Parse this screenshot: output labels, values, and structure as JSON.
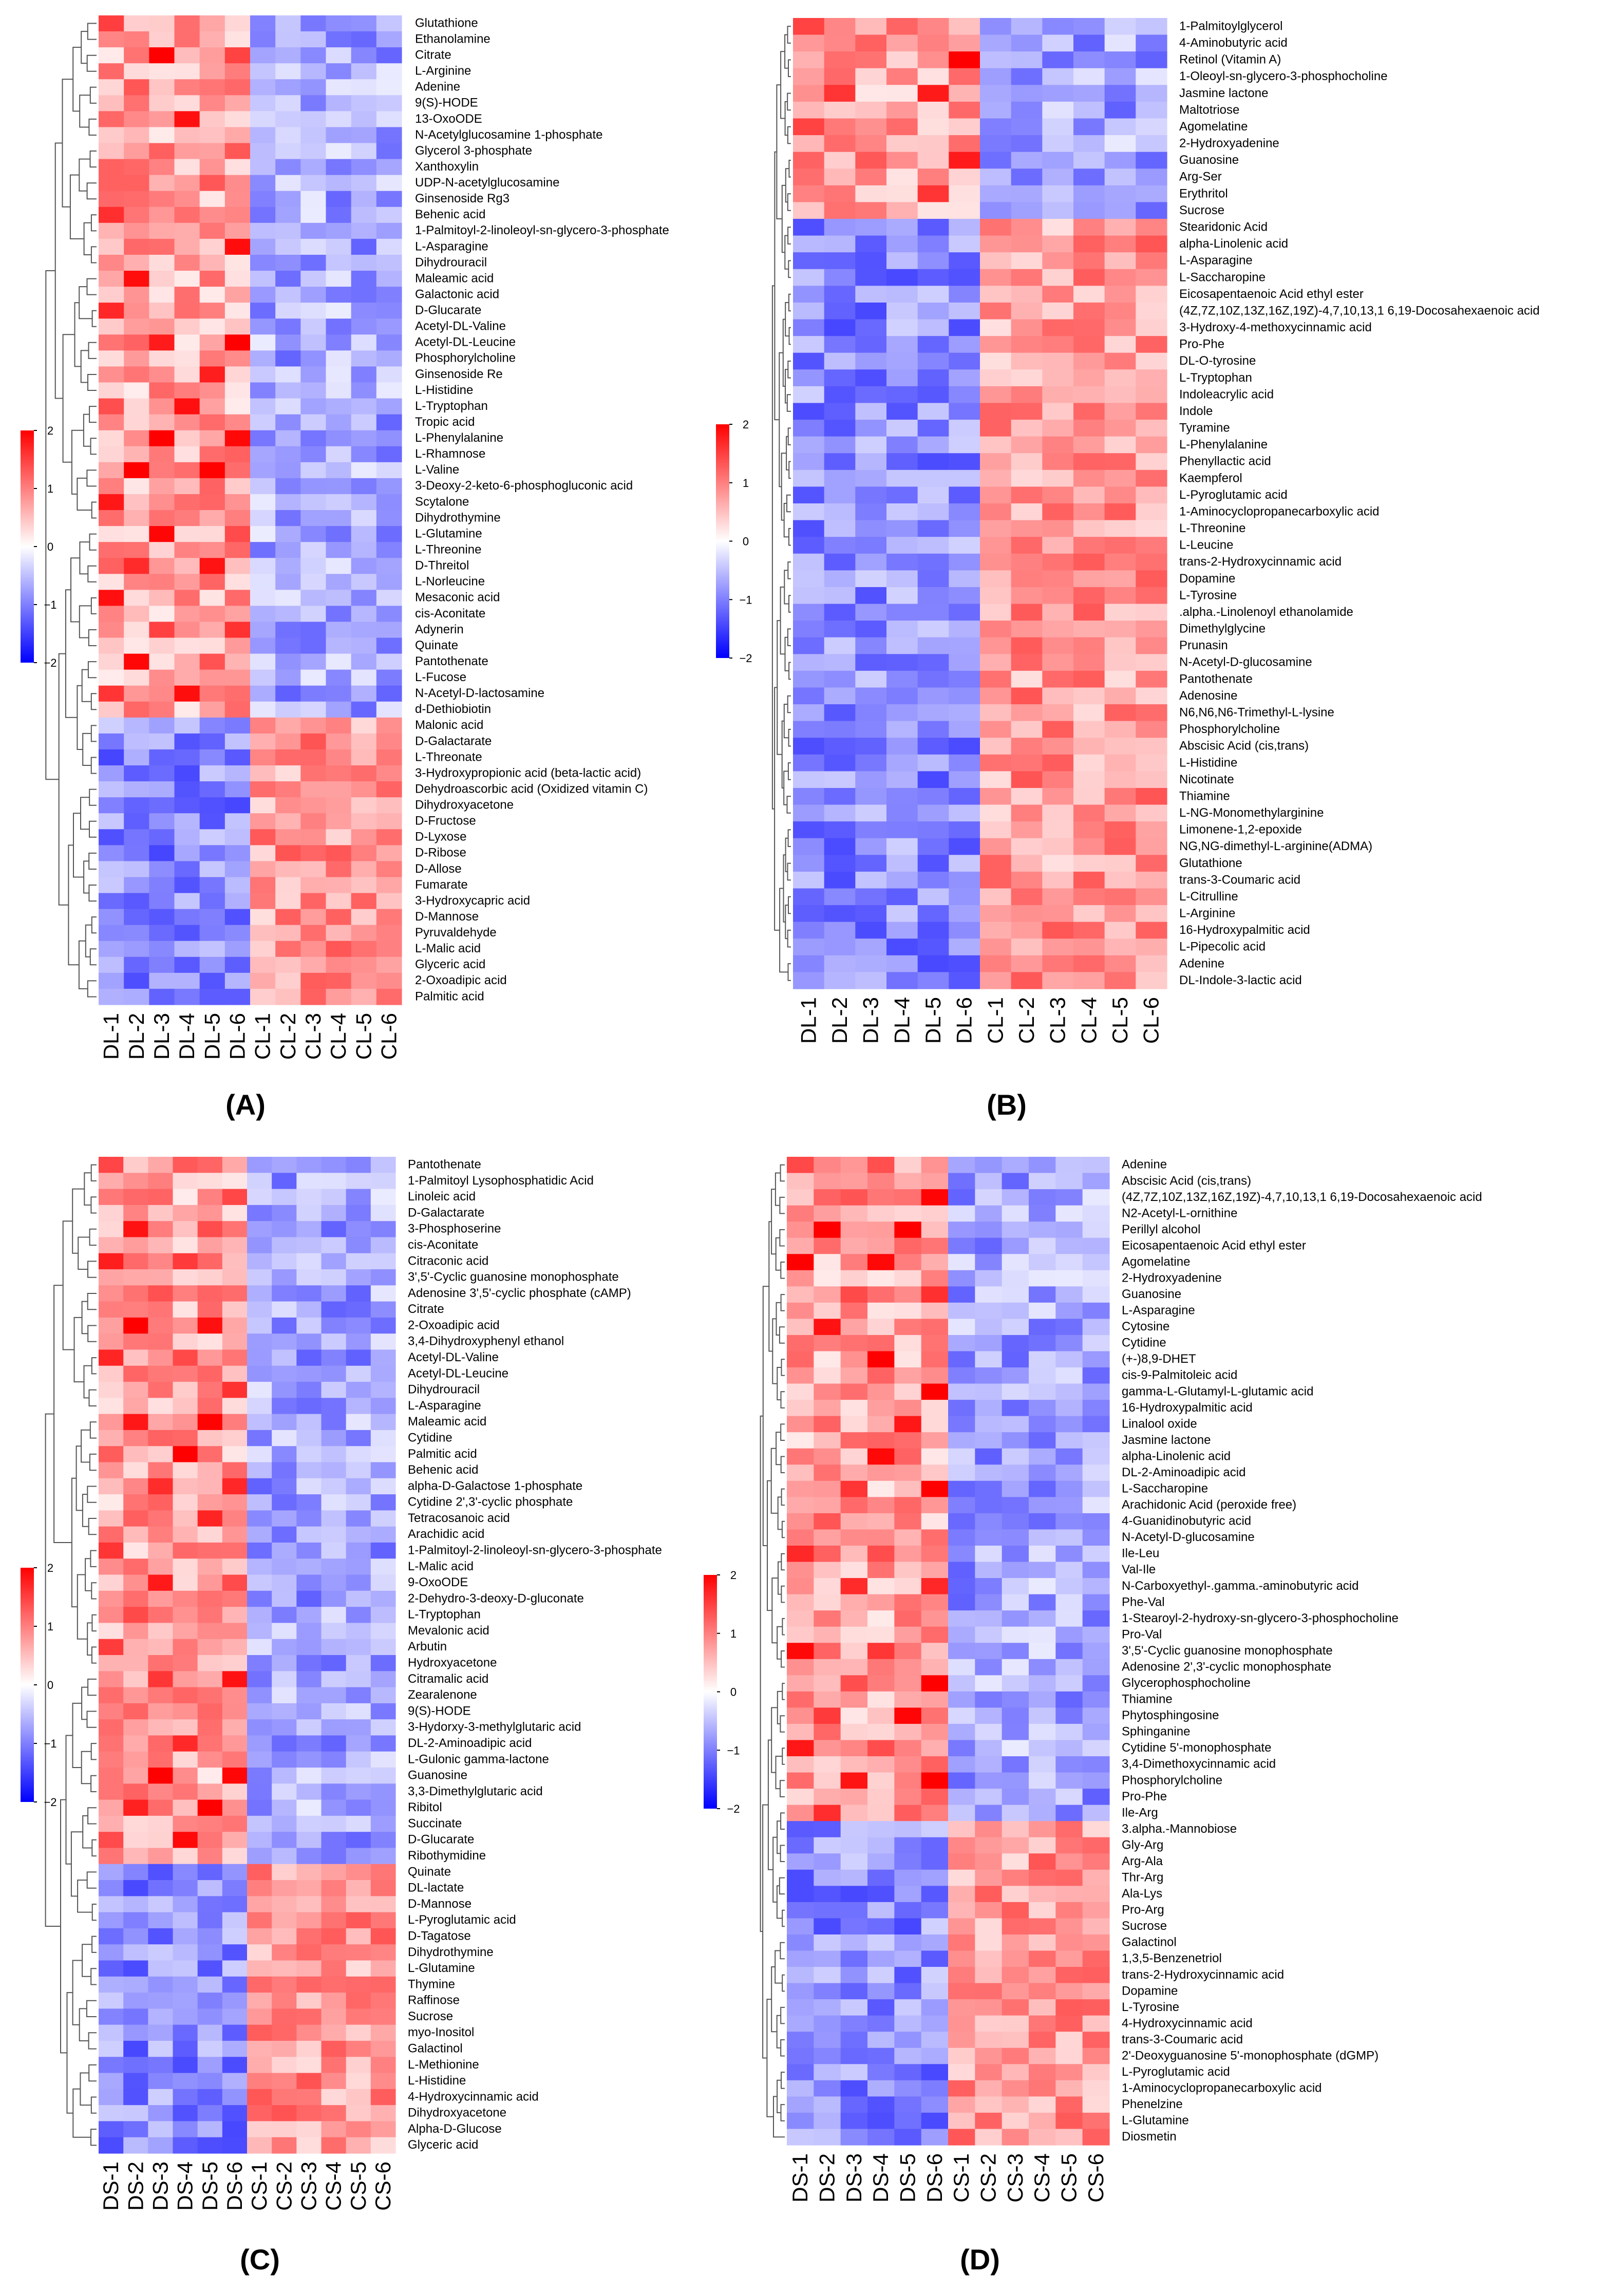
{
  "figure": {
    "panel_labels": [
      "(A)",
      "(B)",
      "(C)",
      "(D)"
    ],
    "color_scale": {
      "low": "#0000FF",
      "mid": "#FFFFFF",
      "high": "#FF0000",
      "ticks": [
        "2",
        "1",
        "0",
        "−1",
        "−2"
      ]
    }
  },
  "chart_data": [
    {
      "type": "heatmap",
      "panel": "(A)",
      "title": "",
      "columns": [
        "DL-1",
        "DL-2",
        "DL-3",
        "DL-4",
        "DL-5",
        "DL-6",
        "CL-1",
        "CL-2",
        "CL-3",
        "CL-4",
        "CL-5",
        "CL-6"
      ],
      "rows": [
        "Glutathione",
        "Ethanolamine",
        "Citrate",
        "L-Arginine",
        "Adenine",
        "9(S)-HODE",
        "13-OxoODE",
        "N-Acetylglucosamine 1-phosphate",
        "Glycerol 3-phosphate",
        "Xanthoxylin",
        "UDP-N-acetylglucosamine",
        "Ginsenoside Rg3",
        "Behenic acid",
        "1-Palmitoyl-2-linoleoyl-sn-glycero-3-phosphate",
        "L-Asparagine",
        "Dihydrouracil",
        "Maleamic acid",
        "Galactonic acid",
        "D-Glucarate",
        "Acetyl-DL-Valine",
        "Acetyl-DL-Leucine",
        "Phosphorylcholine",
        "Ginsenoside Re",
        "L-Histidine",
        "L-Tryptophan",
        "Tropic acid",
        "L-Phenylalanine",
        "L-Rhamnose",
        "L-Valine",
        "3-Deoxy-2-keto-6-phosphogluconic acid",
        "Scytalone",
        "Dihydrothymine",
        "L-Glutamine",
        "L-Threonine",
        "D-Threitol",
        "L-Norleucine",
        "Mesaconic acid",
        "cis-Aconitate",
        "Adynerin",
        "Quinate",
        "Pantothenate",
        "L-Fucose",
        "N-Acetyl-D-lactosamine",
        "d-Dethiobiotin",
        "Malonic acid",
        "D-Galactarate",
        "L-Threonate",
        "3-Hydroxypropionic acid (beta-lactic acid)",
        "Dehydroascorbic acid (Oxidized vitamin C)",
        "Dihydroxyacetone",
        "D-Fructose",
        "D-Lyxose",
        "D-Ribose",
        "D-Allose",
        "Fumarate",
        "3-Hydroxycapric acid",
        "D-Mannose",
        "Pyruvaldehyde",
        "L-Malic acid",
        "Glyceric acid",
        "2-Oxoadipic acid",
        "Palmitic acid"
      ],
      "top_group_rows": 44,
      "scale": [
        -2,
        2
      ]
    },
    {
      "type": "heatmap",
      "panel": "(B)",
      "title": "",
      "columns": [
        "DL-1",
        "DL-2",
        "DL-3",
        "DL-4",
        "DL-5",
        "DL-6",
        "CL-1",
        "CL-2",
        "CL-3",
        "CL-4",
        "CL-5",
        "CL-6"
      ],
      "rows": [
        "1-Palmitoylglycerol",
        "4-Aminobutyric acid",
        "Retinol (Vitamin A)",
        "1-Oleoyl-sn-glycero-3-phosphocholine",
        "Jasmine lactone",
        "Maltotriose",
        "Agomelatine",
        "2-Hydroxyadenine",
        "Guanosine",
        "Arg-Ser",
        "Erythritol",
        "Sucrose",
        "Stearidonic Acid",
        "alpha-Linolenic acid",
        "L-Asparagine",
        "L-Saccharopine",
        "Eicosapentaenoic Acid ethyl ester",
        "(4Z,7Z,10Z,13Z,16Z,19Z)-4,7,10,13,1 6,19-Docosahexaenoic acid",
        "3-Hydroxy-4-methoxycinnamic acid",
        "Pro-Phe",
        "DL-O-tyrosine",
        "L-Tryptophan",
        "Indoleacrylic acid",
        "Indole",
        "Tyramine",
        "L-Phenylalanine",
        "Phenyllactic acid",
        "Kaempferol",
        "L-Pyroglutamic acid",
        "1-Aminocyclopropanecarboxylic acid",
        "L-Threonine",
        "L-Leucine",
        "trans-2-Hydroxycinnamic acid",
        "Dopamine",
        "L-Tyrosine",
        ".alpha.-Linolenoyl ethanolamide",
        "Dimethylglycine",
        "Prunasin",
        "N-Acetyl-D-glucosamine",
        "Pantothenate",
        "Adenosine",
        "N6,N6,N6-Trimethyl-L-lysine",
        "Phosphorylcholine",
        "Abscisic Acid (cis,trans)",
        "L-Histidine",
        "Nicotinate",
        "Thiamine",
        "L-NG-Monomethylarginine",
        "Limonene-1,2-epoxide",
        "NG,NG-dimethyl-L-arginine(ADMA)",
        "Glutathione",
        "trans-3-Coumaric acid",
        "L-Citrulline",
        "L-Arginine",
        "16-Hydroxypalmitic acid",
        "L-Pipecolic acid",
        "Adenine",
        "DL-Indole-3-lactic acid"
      ],
      "top_group_rows": 12,
      "scale": [
        -2,
        2
      ]
    },
    {
      "type": "heatmap",
      "panel": "(C)",
      "title": "",
      "columns": [
        "DS-1",
        "DS-2",
        "DS-3",
        "DS-4",
        "DS-5",
        "DS-6",
        "CS-1",
        "CS-2",
        "CS-3",
        "CS-4",
        "CS-5",
        "CS-6"
      ],
      "rows": [
        "Pantothenate",
        "1-Palmitoyl Lysophosphatidic Acid",
        "Linoleic acid",
        "D-Galactarate",
        "3-Phosphoserine",
        "cis-Aconitate",
        "Citraconic acid",
        "3',5'-Cyclic guanosine monophosphate",
        "Adenosine 3',5'-cyclic phosphate (cAMP)",
        "Citrate",
        "2-Oxoadipic acid",
        "3,4-Dihydroxyphenyl ethanol",
        "Acetyl-DL-Valine",
        "Acetyl-DL-Leucine",
        "Dihydrouracil",
        "L-Asparagine",
        "Maleamic acid",
        "Cytidine",
        "Palmitic acid",
        "Behenic acid",
        "alpha-D-Galactose 1-phosphate",
        "Cytidine 2',3'-cyclic phosphate",
        "Tetracosanoic acid",
        "Arachidic acid",
        "1-Palmitoyl-2-linoleoyl-sn-glycero-3-phosphate",
        "L-Malic acid",
        "9-OxoODE",
        "2-Dehydro-3-deoxy-D-gluconate",
        "L-Tryptophan",
        "Mevalonic acid",
        "Arbutin",
        "Hydroxyacetone",
        "Citramalic acid",
        "Zearalenone",
        "9(S)-HODE",
        "3-Hydorxy-3-methylglutaric acid",
        "DL-2-Aminoadipic acid",
        "L-Gulonic gamma-lactone",
        "Guanosine",
        "3,3-Dimethylglutaric acid",
        "Ribitol",
        "Succinate",
        "D-Glucarate",
        "Ribothymidine",
        "Quinate",
        "DL-lactate",
        "D-Mannose",
        "L-Pyroglutamic acid",
        "D-Tagatose",
        "Dihydrothymine",
        "L-Glutamine",
        "Thymine",
        "Raffinose",
        "Sucrose",
        "myo-Inositol",
        "Galactinol",
        "L-Methionine",
        "L-Histidine",
        "4-Hydroxycinnamic acid",
        "Dihydroxyacetone",
        "Alpha-D-Glucose",
        "Glyceric acid"
      ],
      "top_group_rows": 44,
      "scale": [
        -2,
        2
      ]
    },
    {
      "type": "heatmap",
      "panel": "(D)",
      "title": "",
      "columns": [
        "DS-1",
        "DS-2",
        "DS-3",
        "DS-4",
        "DS-5",
        "DS-6",
        "CS-1",
        "CS-2",
        "CS-3",
        "CS-4",
        "CS-5",
        "CS-6"
      ],
      "rows": [
        "Adenine",
        "Abscisic Acid (cis,trans)",
        "(4Z,7Z,10Z,13Z,16Z,19Z)-4,7,10,13,1 6,19-Docosahexaenoic acid",
        "N2-Acetyl-L-ornithine",
        "Perillyl alcohol",
        "Eicosapentaenoic Acid ethyl ester",
        "Agomelatine",
        "2-Hydroxyadenine",
        "Guanosine",
        "L-Asparagine",
        "Cytosine",
        "Cytidine",
        "(+-)8,9-DHET",
        "cis-9-Palmitoleic acid",
        "gamma-L-Glutamyl-L-glutamic acid",
        "16-Hydroxypalmitic acid",
        "Linalool oxide",
        "Jasmine lactone",
        "alpha-Linolenic acid",
        "DL-2-Aminoadipic acid",
        "L-Saccharopine",
        "Arachidonic Acid (peroxide free)",
        "4-Guanidinobutyric acid",
        "N-Acetyl-D-glucosamine",
        "Ile-Leu",
        "Val-Ile",
        "N-Carboxyethyl-.gamma.-aminobutyric acid",
        "Phe-Val",
        "1-Stearoyl-2-hydroxy-sn-glycero-3-phosphocholine",
        "Pro-Val",
        "3',5'-Cyclic guanosine monophosphate",
        "Adenosine 2',3'-cyclic monophosphate",
        "Glycerophosphocholine",
        "Thiamine",
        "Phytosphingosine",
        "Sphinganine",
        "Cytidine 5'-monophosphate",
        "3,4-Dimethoxycinnamic acid",
        "Phosphorylcholine",
        "Pro-Phe",
        "Ile-Arg",
        "3.alpha.-Mannobiose",
        "Gly-Arg",
        "Arg-Ala",
        "Thr-Arg",
        "Ala-Lys",
        "Pro-Arg",
        "Sucrose",
        "Galactinol",
        "1,3,5-Benzenetriol",
        "trans-2-Hydroxycinnamic acid",
        "Dopamine",
        "L-Tyrosine",
        "4-Hydroxycinnamic acid",
        "trans-3-Coumaric acid",
        "2'-Deoxyguanosine 5'-monophosphate (dGMP)",
        "L-Pyroglutamic acid",
        "1-Aminocyclopropanecarboxylic acid",
        "Phenelzine",
        "L-Glutamine",
        "Diosmetin"
      ],
      "top_group_rows": 41,
      "scale": [
        -2,
        2
      ]
    }
  ]
}
